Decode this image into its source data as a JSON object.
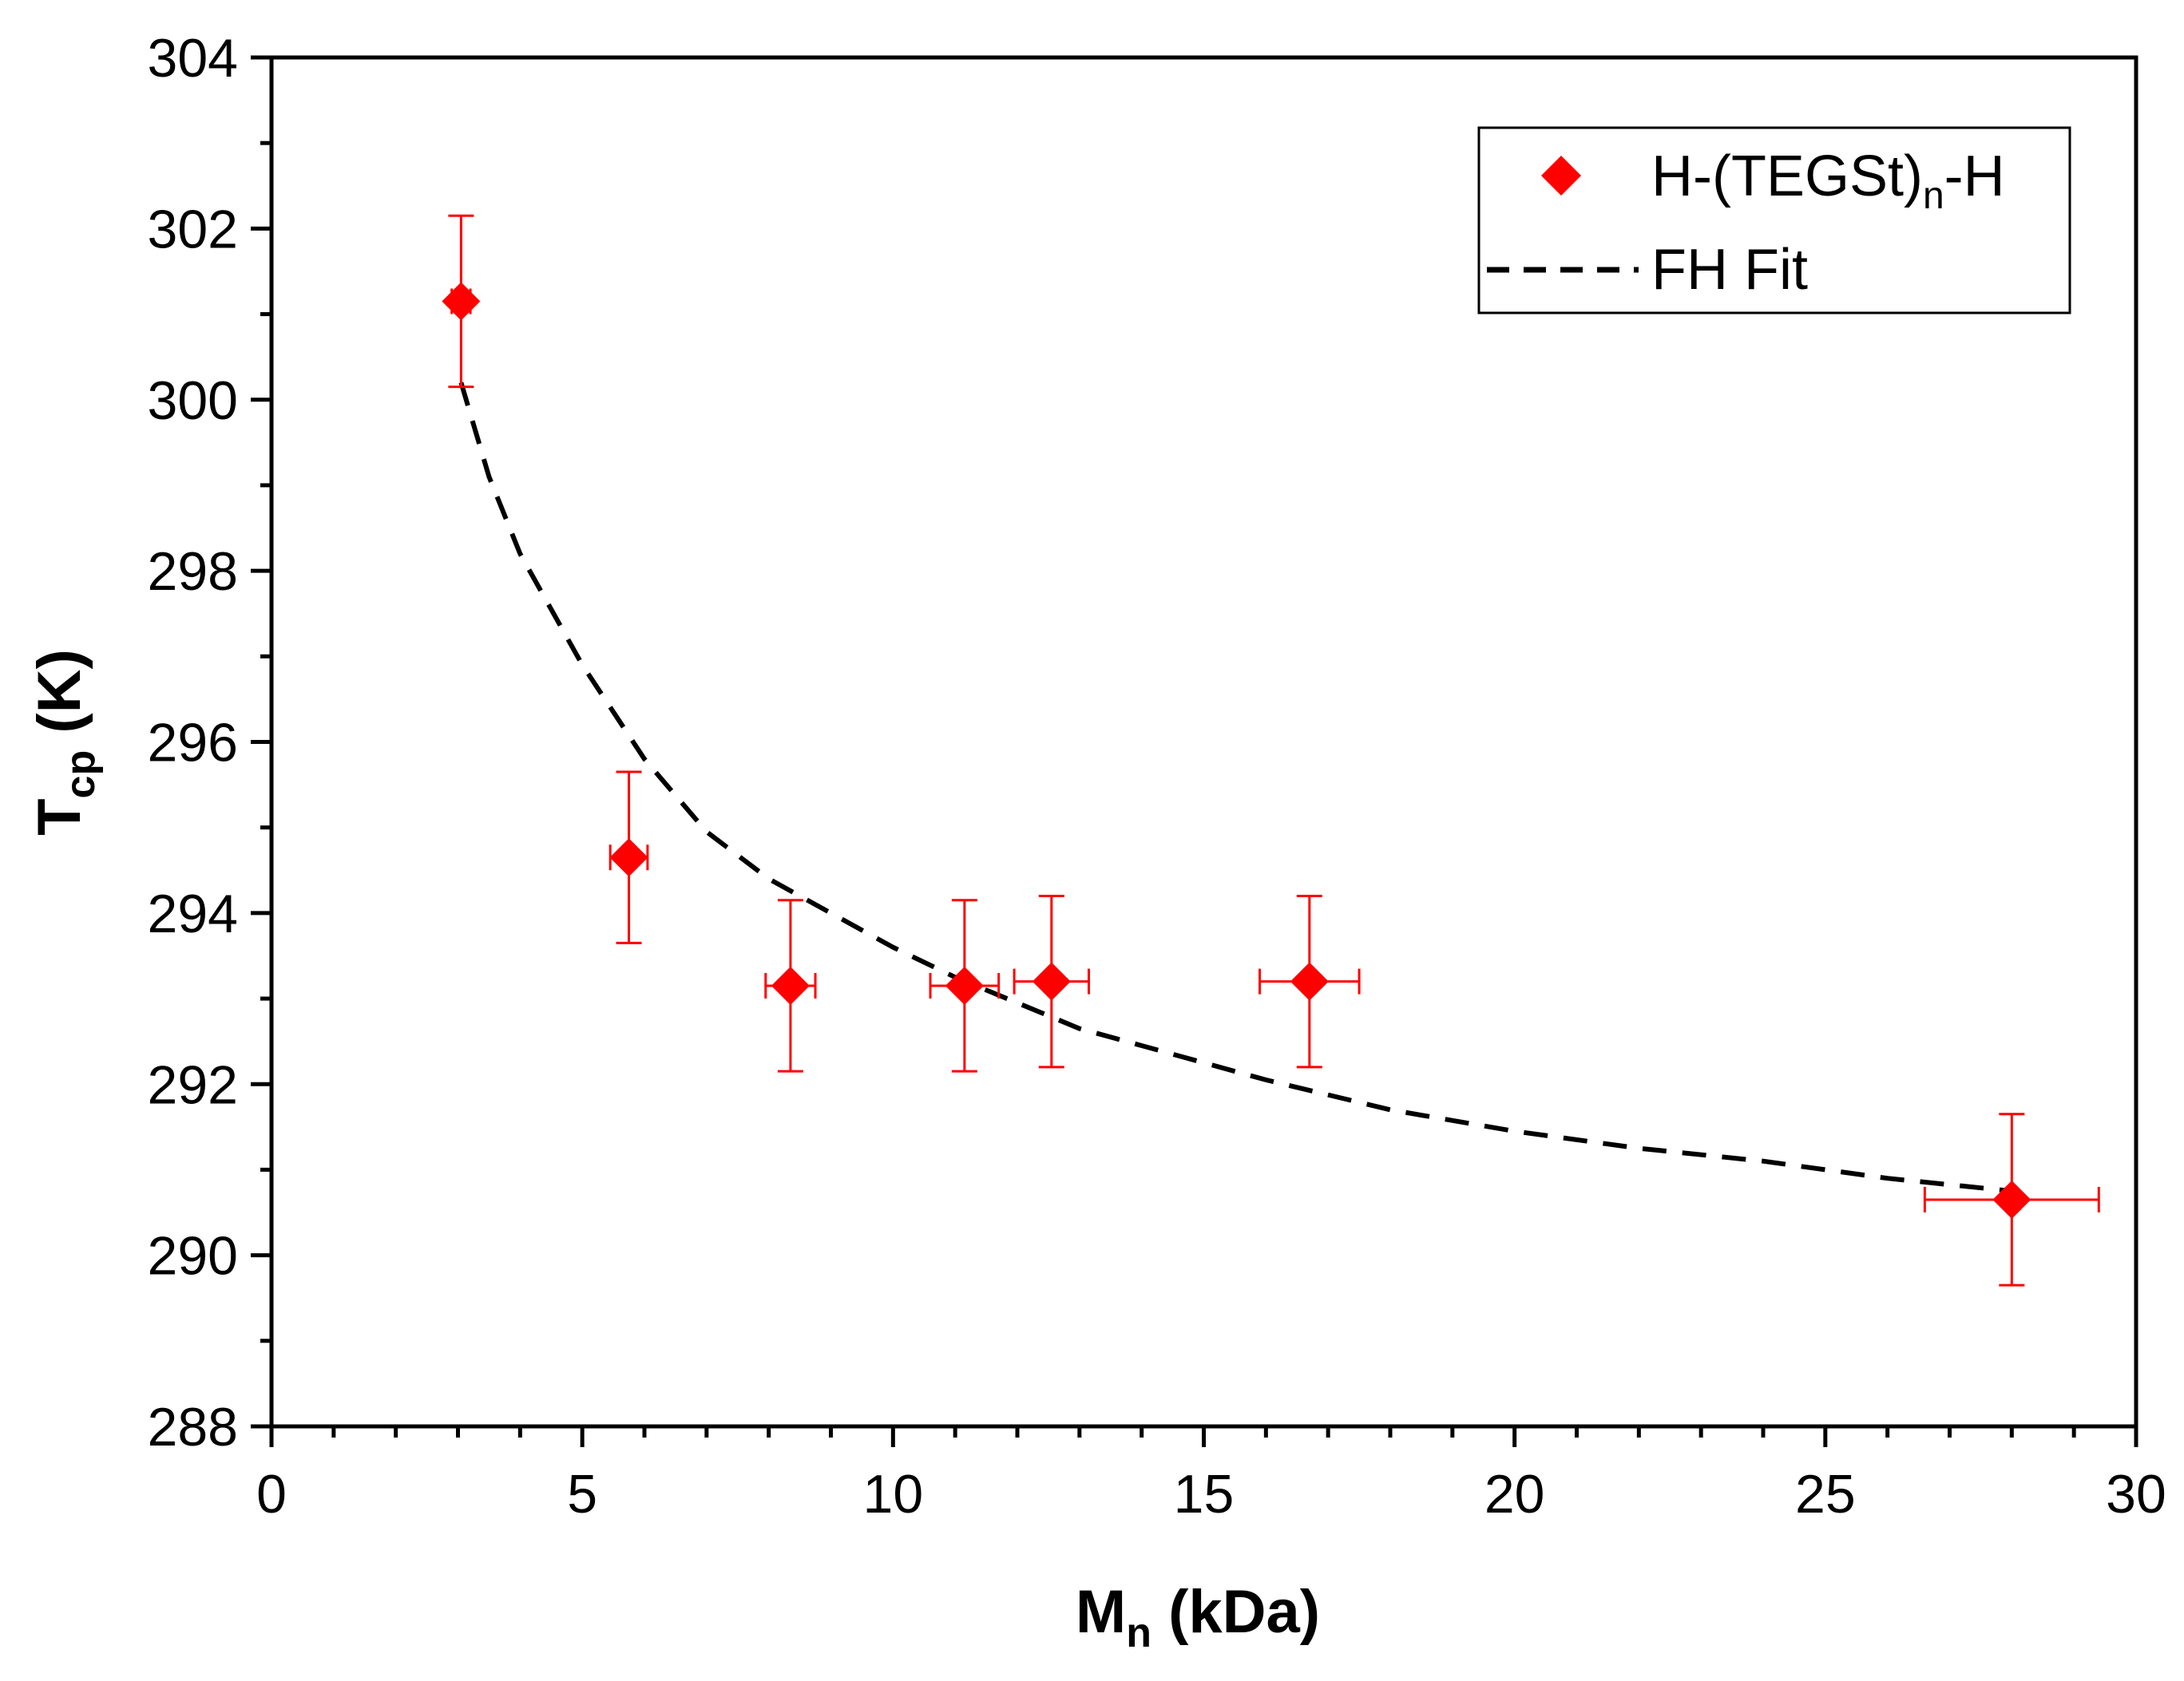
{
  "colors": {
    "marker": "#ff0000",
    "errorbar": "#ff0000",
    "fit": "#000000",
    "axis": "#000000"
  },
  "chart_data": {
    "type": "scatter",
    "title": "",
    "xlabel": {
      "main": "M",
      "sub": "n",
      "rest": " (kDa)"
    },
    "ylabel": {
      "main": "T",
      "sub": "cp",
      "rest": " (K)"
    },
    "xlim": [
      0,
      30
    ],
    "ylim": [
      288,
      304
    ],
    "xticks": [
      0,
      5,
      10,
      15,
      20,
      25,
      30
    ],
    "xtick_labels": [
      "0",
      "5",
      "10",
      "15",
      "20",
      "25",
      "30"
    ],
    "yticks": [
      288,
      290,
      292,
      294,
      296,
      298,
      300,
      302,
      304
    ],
    "ytick_labels": [
      "288",
      "290",
      "292",
      "294",
      "296",
      "298",
      "300",
      "302",
      "304"
    ],
    "grid": false,
    "legend_position": "top-right",
    "series": [
      {
        "name": "H-(TEGSt)n-H",
        "legend_label": {
          "main": "H-(TEGSt)",
          "sub": "n",
          "rest": "-H"
        },
        "kind": "scatter",
        "marker": "diamond",
        "points": [
          {
            "x": 3.05,
            "y": 301.15,
            "xerr": 0.15,
            "yerr": 1.0
          },
          {
            "x": 5.75,
            "y": 294.65,
            "xerr": 0.3,
            "yerr": 1.0
          },
          {
            "x": 8.35,
            "y": 293.15,
            "xerr": 0.4,
            "yerr": 1.0
          },
          {
            "x": 11.15,
            "y": 293.15,
            "xerr": 0.55,
            "yerr": 1.0
          },
          {
            "x": 12.55,
            "y": 293.2,
            "xerr": 0.6,
            "yerr": 1.0
          },
          {
            "x": 16.7,
            "y": 293.2,
            "xerr": 0.8,
            "yerr": 1.0
          },
          {
            "x": 28.0,
            "y": 290.65,
            "xerr": 1.4,
            "yerr": 1.0
          }
        ]
      },
      {
        "name": "FH Fit",
        "legend_label": {
          "main": "FH Fit",
          "sub": "",
          "rest": ""
        },
        "kind": "line",
        "style": "dashed",
        "x": [
          3.05,
          3.5,
          4.0,
          5.0,
          6.0,
          7.0,
          8.0,
          9.0,
          10.0,
          11.0,
          12.0,
          13.0,
          14.0,
          16.0,
          18.0,
          20.0,
          22.0,
          24.0,
          26.0,
          28.0
        ],
        "y": [
          300.2,
          299.1,
          298.2,
          296.9,
          295.8,
          294.95,
          294.4,
          294.0,
          293.6,
          293.25,
          292.95,
          292.65,
          292.45,
          292.05,
          291.7,
          291.45,
          291.25,
          291.1,
          290.9,
          290.75
        ]
      }
    ]
  }
}
